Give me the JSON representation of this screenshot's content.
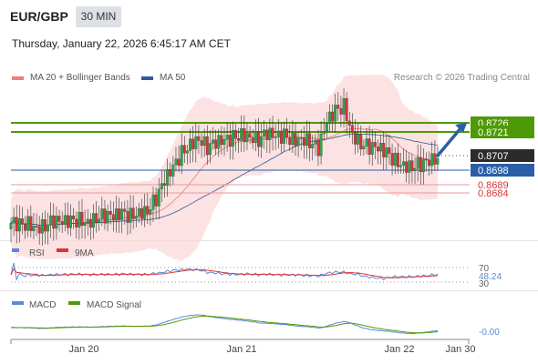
{
  "header": {
    "symbol": "EUR/GBP",
    "timeframe": "30 MIN",
    "datetime": "Thursday, January 22, 2026 6:45:17 AM CET"
  },
  "legend": {
    "ma20": {
      "label": "MA 20 + Bollinger Bands",
      "color": "#f27b7b"
    },
    "ma50": {
      "label": "MA 50",
      "color": "#2e5a96"
    },
    "credit": "Research © 2026 Trading Central"
  },
  "levels": [
    {
      "value": "0.8726",
      "type": "resistance",
      "color": "#4e9a06"
    },
    {
      "value": "0.8721",
      "type": "resistance",
      "color": "#4e9a06"
    },
    {
      "value": "0.8707",
      "type": "last",
      "color": "#333333"
    },
    {
      "value": "0.8698",
      "type": "pivot",
      "color": "#2a5fa8"
    },
    {
      "value": "0.8689",
      "type": "support",
      "color": "#d9353a"
    },
    {
      "value": "0.8684",
      "type": "support",
      "color": "#d9353a"
    }
  ],
  "rsi": {
    "label": "RSI",
    "signal_label": "9MA",
    "levels": [
      "70",
      "30"
    ],
    "value": "48.24",
    "color": "#5f87d8",
    "signal_color": "#d9353a"
  },
  "macd": {
    "label": "MACD",
    "signal_label": "MACD Signal",
    "value": "-0.00",
    "color": "#5f87d8",
    "signal_color": "#4e9a06"
  },
  "xaxis": {
    "labels": [
      "Jan 20",
      "Jan 21",
      "Jan 22",
      "Jan 30"
    ]
  },
  "chart_data": {
    "type": "candlestick",
    "symbol": "EUR/GBP",
    "timeframe": "30 MIN",
    "y_range": [
      0.8665,
      0.8745
    ],
    "price_close_series": [
      0.8673,
      0.8672,
      0.8673,
      0.8671,
      0.8672,
      0.8674,
      0.8673,
      0.8674,
      0.8675,
      0.8674,
      0.8676,
      0.8677,
      0.8676,
      0.8678,
      0.8677,
      0.8679,
      0.868,
      0.8686,
      0.8695,
      0.8702,
      0.871,
      0.8715,
      0.8718,
      0.8713,
      0.8715,
      0.8716,
      0.8718,
      0.872,
      0.8719,
      0.8717,
      0.872,
      0.8718,
      0.8719,
      0.8717,
      0.8718,
      0.8716,
      0.8712,
      0.8726,
      0.8732,
      0.8735,
      0.872,
      0.8715,
      0.8713,
      0.8712,
      0.871,
      0.8706,
      0.8704,
      0.8703,
      0.8704,
      0.8705,
      0.8707
    ],
    "x_labels": [
      "Jan 20",
      "Jan 21",
      "Jan 22",
      "Jan 30"
    ],
    "horizontal_levels": [
      0.8726,
      0.8721,
      0.8707,
      0.8698,
      0.8689,
      0.8684
    ],
    "projection_arrow": {
      "from": 0.8707,
      "to": 0.8726
    },
    "indicators": {
      "rsi": {
        "levels": [
          70,
          30
        ],
        "last": 48.24
      },
      "macd": {
        "last": -0.0
      }
    }
  }
}
